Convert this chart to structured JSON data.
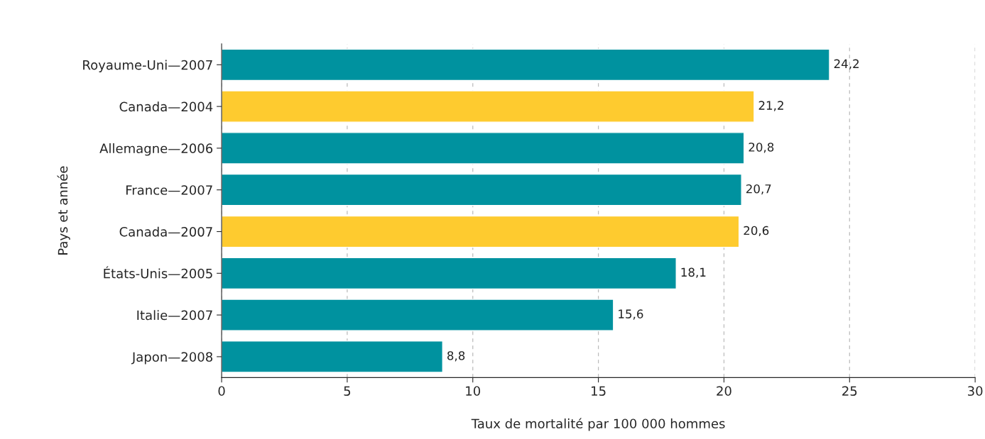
{
  "chart_data": {
    "type": "bar",
    "orientation": "horizontal",
    "xlabel": "Taux de mortalité par 100 000 hommes",
    "ylabel": "Pays et année",
    "categories": [
      "Royaume-Uni—2007",
      "Canada—2004",
      "Allemagne—2006",
      "France—2007",
      "Canada—2007",
      "États-Unis—2005",
      "Italie—2007",
      "Japon—2008"
    ],
    "values": [
      24.2,
      21.2,
      20.8,
      20.7,
      20.6,
      18.1,
      15.6,
      8.8
    ],
    "colors": [
      "#00929f",
      "#fecb2f",
      "#00929f",
      "#00929f",
      "#fecb2f",
      "#00929f",
      "#00929f",
      "#00929f"
    ],
    "value_labels": [
      "24,2",
      "21,2",
      "20,8",
      "20,7",
      "20,6",
      "18,1",
      "15,6",
      "8,8"
    ],
    "xlim": [
      0,
      30
    ],
    "xticks": [
      0,
      5,
      10,
      15,
      20,
      25,
      30
    ],
    "grid": "x",
    "legend": false
  }
}
